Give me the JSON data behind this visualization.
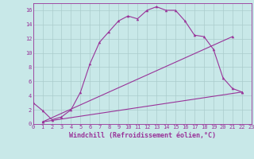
{
  "background_color": "#c8e8e8",
  "line_color": "#993399",
  "grid_color": "#aacccc",
  "xlabel": "Windchill (Refroidissement éolien,°C)",
  "xlim": [
    0,
    23
  ],
  "ylim": [
    0,
    17
  ],
  "xticks": [
    0,
    1,
    2,
    3,
    4,
    5,
    6,
    7,
    8,
    9,
    10,
    11,
    12,
    13,
    14,
    15,
    16,
    17,
    18,
    19,
    20,
    21,
    22,
    23
  ],
  "yticks": [
    0,
    2,
    4,
    6,
    8,
    10,
    12,
    14,
    16
  ],
  "line1_x": [
    0,
    1,
    2,
    3,
    4,
    5,
    6,
    7,
    8,
    9,
    10,
    11,
    12,
    13,
    14,
    15,
    16,
    17,
    18,
    19,
    20,
    21,
    22
  ],
  "line1_y": [
    3.0,
    1.9,
    0.6,
    1.0,
    2.0,
    4.5,
    8.5,
    11.5,
    13.0,
    14.5,
    15.2,
    14.8,
    16.0,
    16.5,
    16.0,
    16.0,
    14.5,
    12.5,
    12.3,
    10.5,
    6.5,
    5.0,
    4.5
  ],
  "line2_x": [
    1,
    21
  ],
  "line2_y": [
    0.3,
    12.3
  ],
  "line3_x": [
    1,
    22
  ],
  "line3_y": [
    0.3,
    4.5
  ],
  "markersize": 2.5,
  "linewidth": 0.8,
  "xlabel_fontsize": 6,
  "tick_fontsize": 5
}
